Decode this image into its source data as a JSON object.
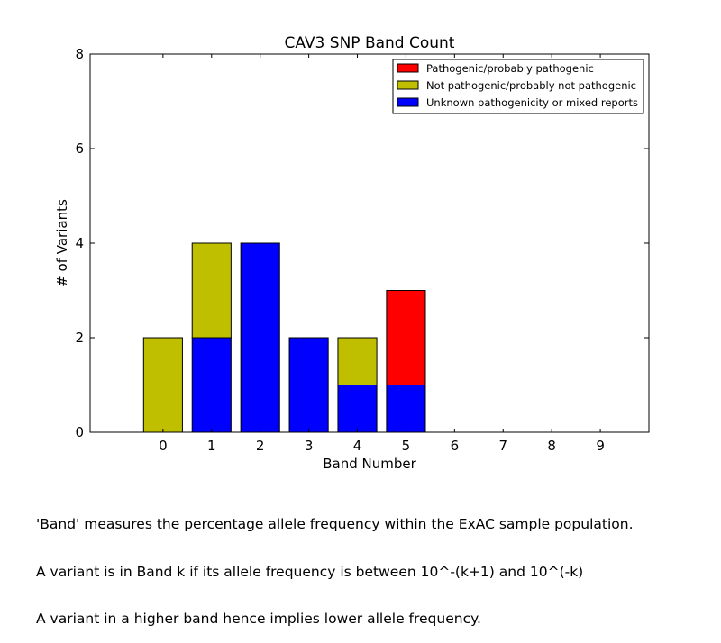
{
  "chart_data": {
    "type": "bar",
    "stacked": true,
    "title": "CAV3 SNP Band Count",
    "xlabel": "Band Number",
    "ylabel": "# of Variants",
    "categories": [
      "0",
      "1",
      "2",
      "3",
      "4",
      "5",
      "6",
      "7",
      "8",
      "9"
    ],
    "xlim": [
      -1.5,
      10
    ],
    "ylim": [
      0,
      8
    ],
    "yticks": [
      "0",
      "2",
      "4",
      "6",
      "8"
    ],
    "grid": false,
    "legend_position": "top-right",
    "series": [
      {
        "name": "Unknown pathogenicity or mixed reports",
        "color": "#0000ff",
        "values": [
          0,
          2,
          4,
          2,
          1,
          1,
          0,
          0,
          0,
          0
        ]
      },
      {
        "name": "Not pathogenic/probably not pathogenic",
        "color": "#bfbf00",
        "values": [
          2,
          2,
          0,
          0,
          1,
          0,
          0,
          0,
          0,
          0
        ]
      },
      {
        "name": "Pathogenic/probably pathogenic",
        "color": "#ff0000",
        "values": [
          0,
          0,
          0,
          0,
          0,
          2,
          0,
          0,
          0,
          0
        ]
      }
    ],
    "legend_order": [
      "Pathogenic/probably pathogenic",
      "Not pathogenic/probably not pathogenic",
      "Unknown pathogenicity or mixed reports"
    ]
  },
  "caption": {
    "line1": "'Band' measures the percentage allele frequency within the ExAC sample population.",
    "line2": "A variant is in Band k if its allele frequency is between 10^-(k+1) and 10^(-k)",
    "line3": "A variant in a higher band hence implies lower allele frequency."
  }
}
